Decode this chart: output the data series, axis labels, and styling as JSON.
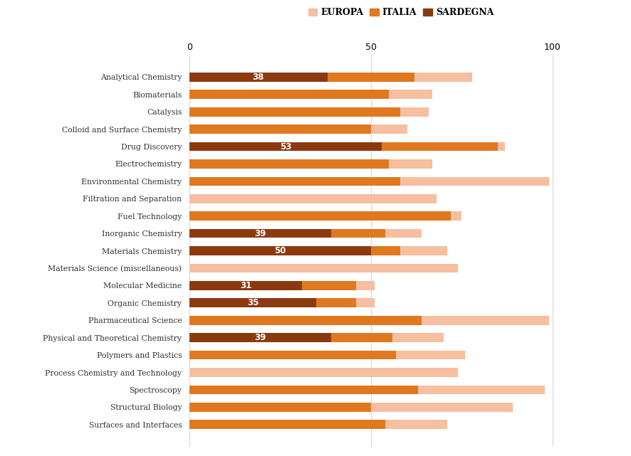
{
  "categories": [
    "Analytical Chemistry",
    "Biomaterials",
    "Catalysis",
    "Colloid and Surface Chemistry",
    "Drug Discovery",
    "Electrochemistry",
    "Environmental Chemistry",
    "Filtration and Separation",
    "Fuel Technology",
    "Inorganic Chemistry",
    "Materials Chemistry",
    "Materials Science (miscellaneous)",
    "Molecular Medicine",
    "Organic Chemistry",
    "Pharmaceutical Science",
    "Physical and Theoretical Chemistry",
    "Polymers and Plastics",
    "Process Chemistry and Technology",
    "Spectroscopy",
    "Structural Biology",
    "Surfaces and Interfaces"
  ],
  "sardegna_vals": [
    38,
    0,
    0,
    0,
    53,
    0,
    0,
    0,
    0,
    39,
    50,
    0,
    31,
    35,
    0,
    39,
    0,
    0,
    0,
    0,
    0
  ],
  "italia_vals": [
    62,
    55,
    58,
    50,
    85,
    55,
    58,
    0,
    72,
    54,
    58,
    0,
    46,
    46,
    64,
    56,
    57,
    0,
    63,
    50,
    54
  ],
  "europa_vals": [
    78,
    67,
    66,
    60,
    87,
    67,
    99,
    68,
    75,
    64,
    71,
    74,
    51,
    51,
    99,
    70,
    76,
    74,
    98,
    89,
    71
  ],
  "sardegna_color": "#8B3A10",
  "italia_color": "#E07820",
  "europa_color": "#F5BFA0",
  "label_color": "#FFFFFF",
  "background_color": "#FFFFFF",
  "grid_color": "#D8D8D8"
}
